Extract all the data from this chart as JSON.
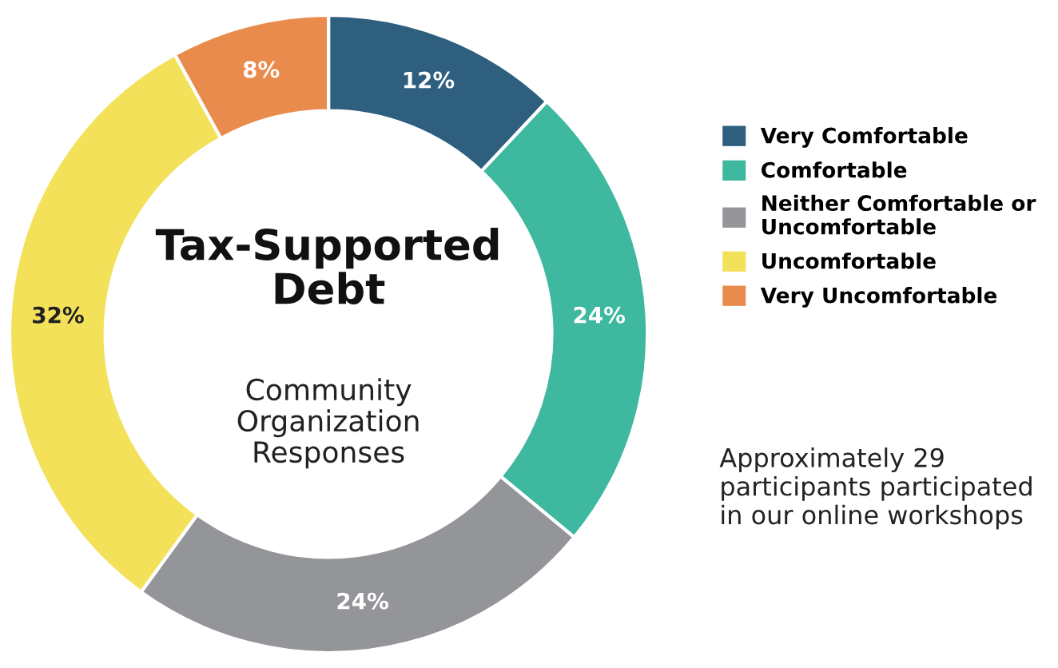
{
  "chart_data": {
    "type": "donut",
    "title": "Tax-Supported Debt",
    "subtitle": "Community Organization Responses",
    "categories": [
      "Very Comfortable",
      "Comfortable",
      "Neither Comfortable or Uncomfortable",
      "Uncomfortable",
      "Very Uncomfortable"
    ],
    "values": [
      12,
      24,
      24,
      32,
      8
    ],
    "colors": [
      "#2e5f7f",
      "#3fb8a0",
      "#949599",
      "#f3e15a",
      "#e98b4d"
    ],
    "value_labels": [
      "12%",
      "24%",
      "24%",
      "32%",
      "8%"
    ],
    "legend": "right",
    "annotations": [
      "Approximately 29 participants participated in our online workshops"
    ]
  }
}
